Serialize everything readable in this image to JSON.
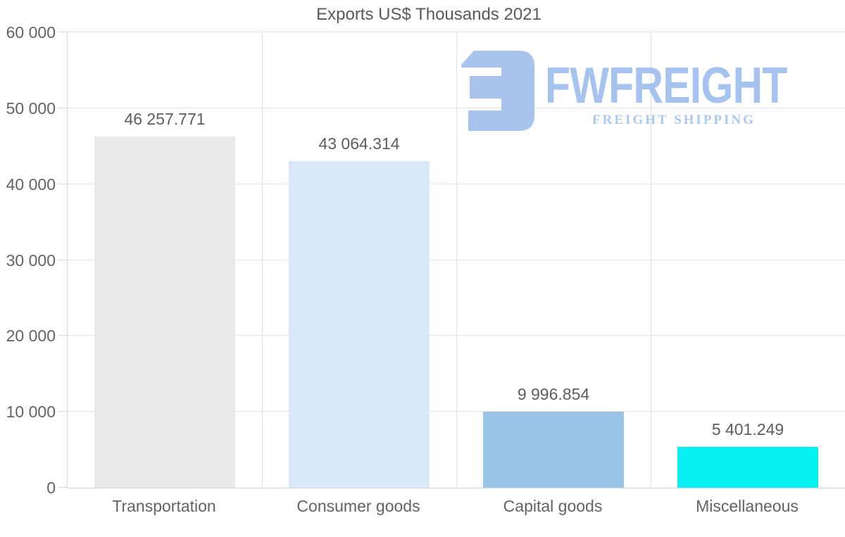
{
  "title": "Exports US$ Thousands 2021",
  "logo": {
    "name": "FWFREIGHT",
    "tagline": "FREIGHT SHIPPING",
    "icon": "freight-f-mark",
    "name_color": "#a6c2ef",
    "tagline_color": "#abc8f1",
    "mark_color": "#a9c3ef"
  },
  "chart_data": {
    "type": "bar",
    "title": "Exports US$ Thousands 2021",
    "categories": [
      "Transportation",
      "Consumer goods",
      "Capital goods",
      "Miscellaneous"
    ],
    "values": [
      46257.771,
      43064.314,
      9996.854,
      5401.249
    ],
    "value_labels": [
      "46 257.771",
      "43 064.314",
      "9 996.854",
      "5 401.249"
    ],
    "bar_colors": [
      "#e9e9e9",
      "#d8e8f9",
      "#9ac5e9",
      "#05f1f1"
    ],
    "xlabel": "",
    "ylabel": "",
    "ylim": [
      0,
      60000
    ],
    "yticks": [
      0,
      10000,
      20000,
      30000,
      40000,
      50000,
      60000
    ],
    "ytick_labels": [
      "0",
      "10 000",
      "20 000",
      "30 000",
      "40 000",
      "50 000",
      "60 000"
    ],
    "grid": true,
    "legend": false
  }
}
